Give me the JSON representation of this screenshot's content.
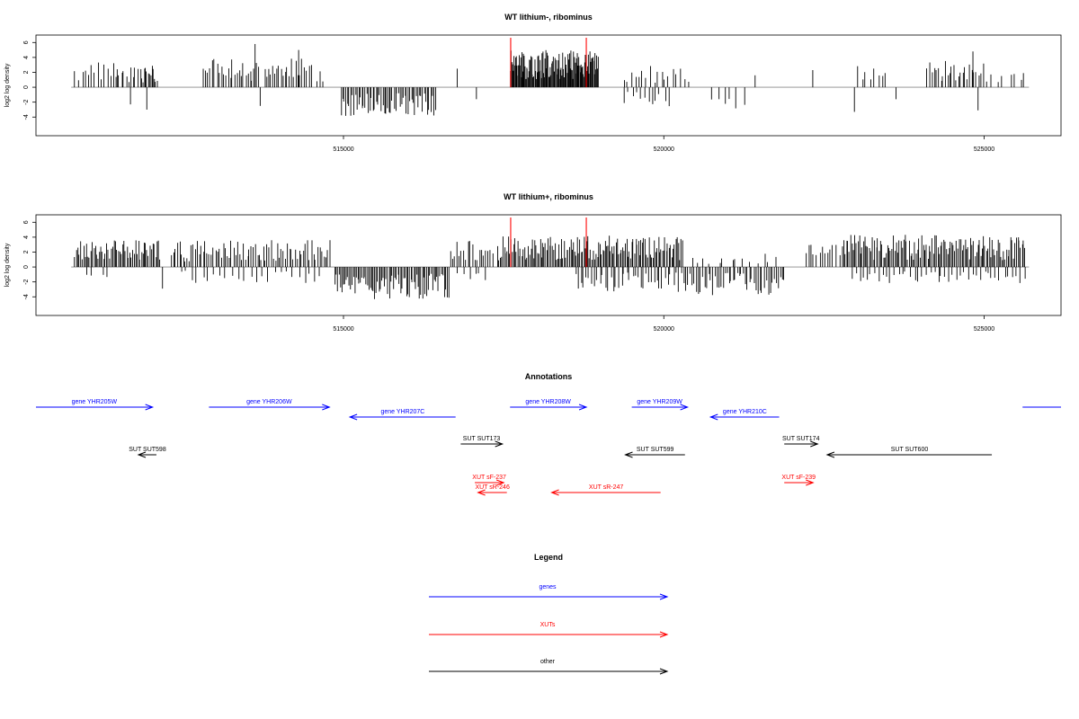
{
  "colors": {
    "gene": "#0000ff",
    "xut": "#ff0000",
    "other": "#000000",
    "baseline": "#888888",
    "frame": "#000000",
    "marker": "#ff0000"
  },
  "chart_data": [
    {
      "type": "bar",
      "title": "WT lithium-, ribominus",
      "ylabel": "log2 log density",
      "ylim": [
        -6.5,
        7
      ],
      "yticks": [
        -4,
        -2,
        0,
        2,
        4,
        6
      ],
      "xlim": [
        510200,
        526200
      ],
      "xticks": [
        515000,
        520000,
        525000
      ],
      "xtick_labels": [
        "515000",
        "520000",
        "525000"
      ],
      "markers": [
        517610,
        518790
      ],
      "density": [
        {
          "start": 510800,
          "end": 511500,
          "n": 14,
          "amp": 3.2,
          "sign": 1
        },
        {
          "start": 511450,
          "end": 511800,
          "n": 10,
          "amp": 2.6,
          "sign": 1
        },
        {
          "start": 511650,
          "end": 511700,
          "n": 1,
          "amp": 2.3,
          "sign": -1
        },
        {
          "start": 511820,
          "end": 512100,
          "n": 14,
          "amp": 2.4,
          "sign": 1
        },
        {
          "start": 511900,
          "end": 511960,
          "n": 1,
          "amp": 3.0,
          "sign": -1
        },
        {
          "start": 512800,
          "end": 513700,
          "n": 26,
          "amp": 3.2,
          "sign": 1
        },
        {
          "start": 513600,
          "end": 513640,
          "n": 1,
          "amp": 5.8,
          "sign": 1
        },
        {
          "start": 513680,
          "end": 513720,
          "n": 1,
          "amp": 2.5,
          "sign": -1
        },
        {
          "start": 513750,
          "end": 514400,
          "n": 20,
          "amp": 3.4,
          "sign": 1
        },
        {
          "start": 514280,
          "end": 514320,
          "n": 1,
          "amp": 5.0,
          "sign": 1
        },
        {
          "start": 514400,
          "end": 514700,
          "n": 6,
          "amp": 3.0,
          "sign": 1
        },
        {
          "start": 514950,
          "end": 516450,
          "n": 60,
          "amp": 3.2,
          "sign": -1
        },
        {
          "start": 516750,
          "end": 516800,
          "n": 1,
          "amp": 2.5,
          "sign": 1
        },
        {
          "start": 517050,
          "end": 517100,
          "n": 1,
          "amp": 1.6,
          "sign": -1
        },
        {
          "start": 517600,
          "end": 518980,
          "n": 120,
          "amp": 4.2,
          "sign": 1
        },
        {
          "start": 519350,
          "end": 520400,
          "n": 18,
          "amp": 2.4,
          "sign": 1
        },
        {
          "start": 519350,
          "end": 520100,
          "n": 12,
          "amp": 2.2,
          "sign": -1
        },
        {
          "start": 520700,
          "end": 521300,
          "n": 6,
          "amp": 2.4,
          "sign": -1
        },
        {
          "start": 521400,
          "end": 521450,
          "n": 1,
          "amp": 1.6,
          "sign": 1
        },
        {
          "start": 522300,
          "end": 522350,
          "n": 1,
          "amp": 2.3,
          "sign": 1
        },
        {
          "start": 522950,
          "end": 523000,
          "n": 1,
          "amp": 3.3,
          "sign": -1
        },
        {
          "start": 523000,
          "end": 523500,
          "n": 8,
          "amp": 2.6,
          "sign": 1
        },
        {
          "start": 523600,
          "end": 523650,
          "n": 1,
          "amp": 1.6,
          "sign": -1
        },
        {
          "start": 524100,
          "end": 525000,
          "n": 26,
          "amp": 3.0,
          "sign": 1
        },
        {
          "start": 524800,
          "end": 524850,
          "n": 1,
          "amp": 4.8,
          "sign": 1
        },
        {
          "start": 524880,
          "end": 524930,
          "n": 1,
          "amp": 3.1,
          "sign": -1
        },
        {
          "start": 525000,
          "end": 525700,
          "n": 8,
          "amp": 1.8,
          "sign": 1
        }
      ]
    },
    {
      "type": "bar",
      "title": "WT lithium+, ribominus",
      "ylabel": "log2 log density",
      "ylim": [
        -6.5,
        7
      ],
      "yticks": [
        -4,
        -2,
        0,
        2,
        4,
        6
      ],
      "xlim": [
        510200,
        526200
      ],
      "xticks": [
        515000,
        520000,
        525000
      ],
      "xtick_labels": [
        "515000",
        "520000",
        "525000"
      ],
      "markers": [
        517610,
        518790
      ],
      "density": [
        {
          "start": 510800,
          "end": 512150,
          "n": 60,
          "amp": 3.0,
          "sign": 1
        },
        {
          "start": 512150,
          "end": 512200,
          "n": 1,
          "amp": 2.9,
          "sign": -1
        },
        {
          "start": 510900,
          "end": 511400,
          "n": 4,
          "amp": 1.2,
          "sign": -1
        },
        {
          "start": 512300,
          "end": 514800,
          "n": 80,
          "amp": 3.0,
          "sign": 1
        },
        {
          "start": 512400,
          "end": 514700,
          "n": 25,
          "amp": 1.8,
          "sign": -1
        },
        {
          "start": 514850,
          "end": 516650,
          "n": 80,
          "amp": 3.6,
          "sign": -1
        },
        {
          "start": 516650,
          "end": 517350,
          "n": 20,
          "amp": 3.0,
          "sign": 1
        },
        {
          "start": 516700,
          "end": 517300,
          "n": 6,
          "amp": 1.6,
          "sign": -1
        },
        {
          "start": 517400,
          "end": 520300,
          "n": 140,
          "amp": 3.5,
          "sign": 1
        },
        {
          "start": 518600,
          "end": 520300,
          "n": 40,
          "amp": 2.8,
          "sign": -1
        },
        {
          "start": 520300,
          "end": 521900,
          "n": 50,
          "amp": 3.2,
          "sign": -1
        },
        {
          "start": 520400,
          "end": 521800,
          "n": 14,
          "amp": 1.6,
          "sign": 1
        },
        {
          "start": 522200,
          "end": 522700,
          "n": 12,
          "amp": 2.6,
          "sign": 1
        },
        {
          "start": 522750,
          "end": 525650,
          "n": 130,
          "amp": 3.6,
          "sign": 1
        },
        {
          "start": 522900,
          "end": 525650,
          "n": 45,
          "amp": 1.8,
          "sign": -1
        }
      ]
    }
  ],
  "annotations": {
    "title": "Annotations",
    "xlim": [
      510200,
      526200
    ],
    "tracks": [
      {
        "kind": "gene",
        "label": "gene YHR205W",
        "start": 510200,
        "end": 512020,
        "strand": "+",
        "row": 0
      },
      {
        "kind": "gene",
        "label": "gene YHR206W",
        "start": 512900,
        "end": 514780,
        "strand": "+",
        "row": 0
      },
      {
        "kind": "gene",
        "label": "gene YHR207C",
        "start": 515100,
        "end": 516750,
        "strand": "-",
        "row": 1
      },
      {
        "kind": "gene",
        "label": "gene YHR208W",
        "start": 517600,
        "end": 518790,
        "strand": "+",
        "row": 0
      },
      {
        "kind": "gene",
        "label": "gene YHR209W",
        "start": 519500,
        "end": 520370,
        "strand": "+",
        "row": 0
      },
      {
        "kind": "gene",
        "label": "gene YHR210C",
        "start": 520730,
        "end": 521800,
        "strand": "-",
        "row": 1
      },
      {
        "kind": "gene",
        "label": "",
        "start": 525600,
        "end": 526200,
        "strand": "none",
        "row": 0
      },
      {
        "kind": "other",
        "label": "SUT SUT598",
        "start": 511800,
        "end": 512080,
        "strand": "-",
        "row": 4
      },
      {
        "kind": "other",
        "label": "SUT SUT173",
        "start": 516830,
        "end": 517480,
        "strand": "+",
        "row": 3
      },
      {
        "kind": "other",
        "label": "SUT SUT599",
        "start": 519400,
        "end": 520330,
        "strand": "-",
        "row": 4
      },
      {
        "kind": "other",
        "label": "SUT SUT174",
        "start": 521880,
        "end": 522400,
        "strand": "+",
        "row": 3
      },
      {
        "kind": "other",
        "label": "SUT SUT600",
        "start": 522550,
        "end": 525120,
        "strand": "-",
        "row": 4
      },
      {
        "kind": "xut",
        "label": "XUT sF-237",
        "start": 517050,
        "end": 517500,
        "strand": "+",
        "row": 5
      },
      {
        "kind": "xut",
        "label": "XUT sR-246",
        "start": 517100,
        "end": 517550,
        "strand": "-",
        "row": 6
      },
      {
        "kind": "xut",
        "label": "XUT sR-247",
        "start": 518250,
        "end": 519950,
        "strand": "-",
        "row": 6
      },
      {
        "kind": "xut",
        "label": "XUT sF-239",
        "start": 521880,
        "end": 522330,
        "strand": "+",
        "row": 5
      }
    ]
  },
  "legend": {
    "title": "Legend",
    "items": [
      {
        "kind": "gene",
        "label": "genes"
      },
      {
        "kind": "xut",
        "label": "XUTs"
      },
      {
        "kind": "other",
        "label": "other"
      }
    ]
  }
}
